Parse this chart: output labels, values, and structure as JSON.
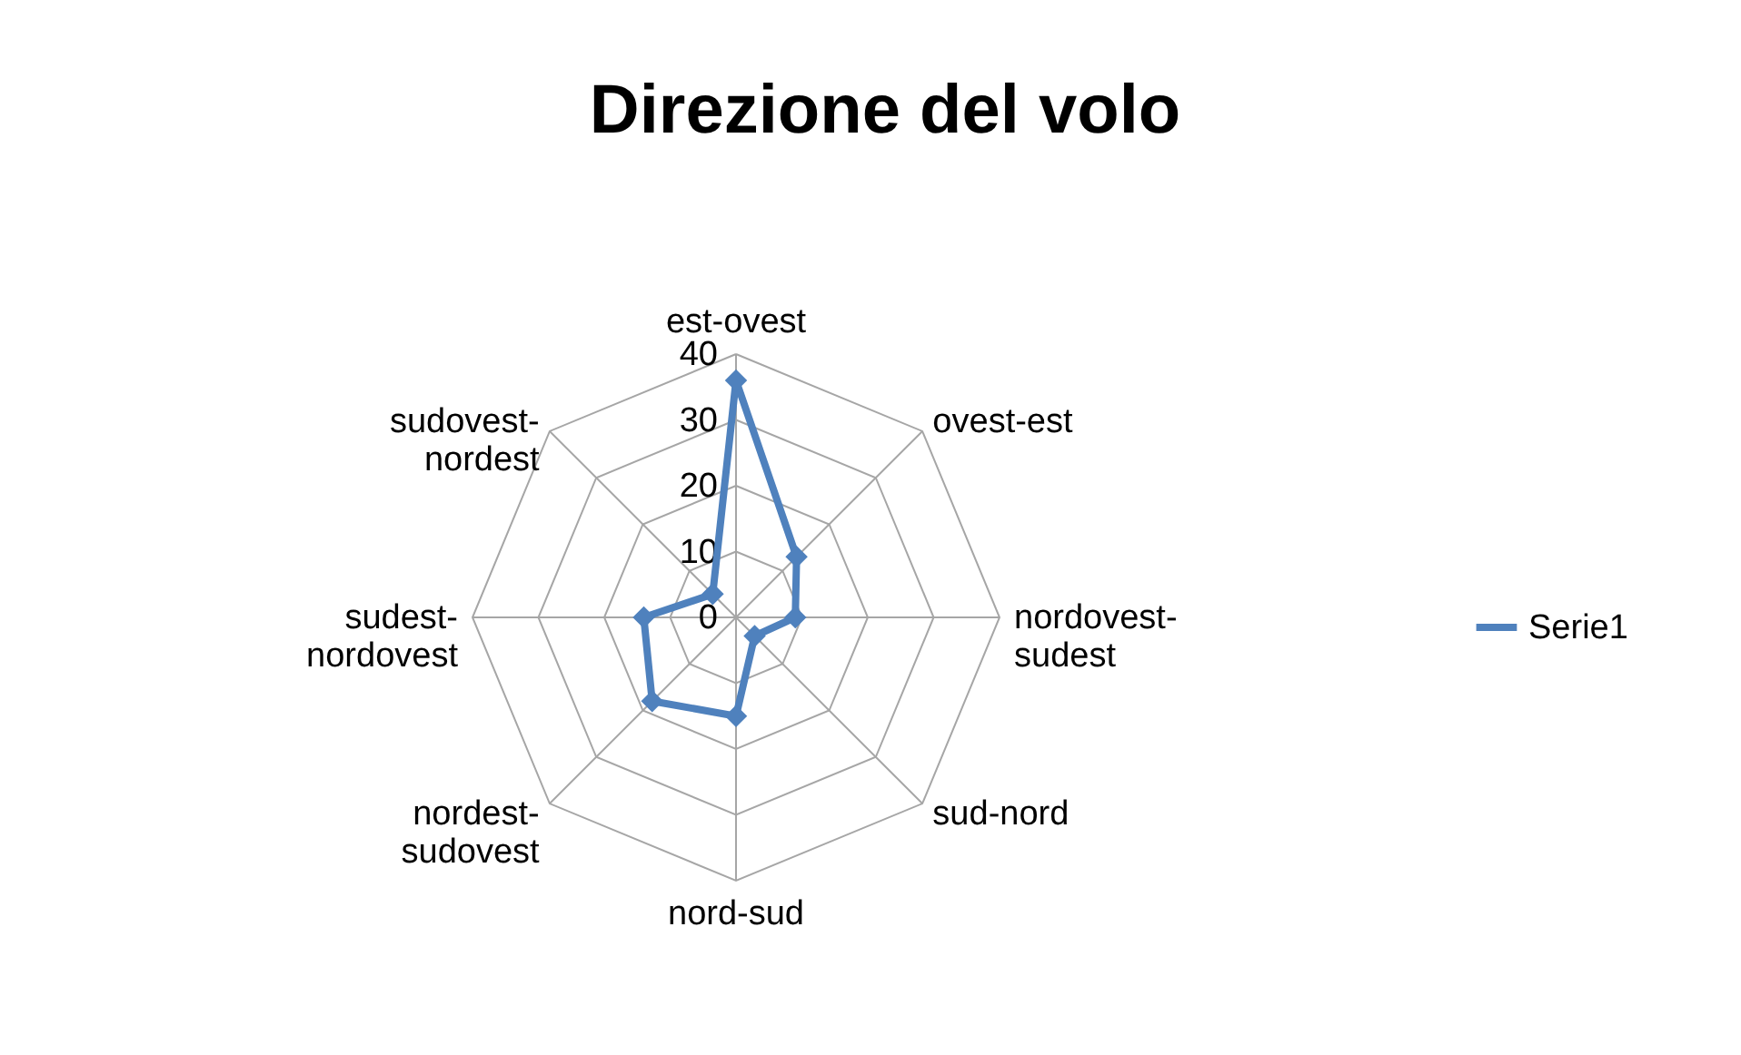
{
  "chart_data": {
    "type": "radar",
    "title": "Direzione del volo",
    "categories": [
      "est-ovest",
      "ovest-est",
      "nordovest-sudest",
      "sud-nord",
      "nord-sud",
      "nordest-sudovest",
      "sudest-nordovest",
      "sudovest-nordest"
    ],
    "series": [
      {
        "name": "Serie1",
        "color": "#4f81bd",
        "values": [
          36,
          13,
          9,
          4,
          15,
          18,
          14,
          5
        ]
      }
    ],
    "ylim": [
      0,
      40
    ],
    "yticks": [
      0,
      10,
      20,
      30,
      40
    ],
    "grid": true,
    "legend": "right",
    "marker": "diamond",
    "line_style": "solid"
  }
}
